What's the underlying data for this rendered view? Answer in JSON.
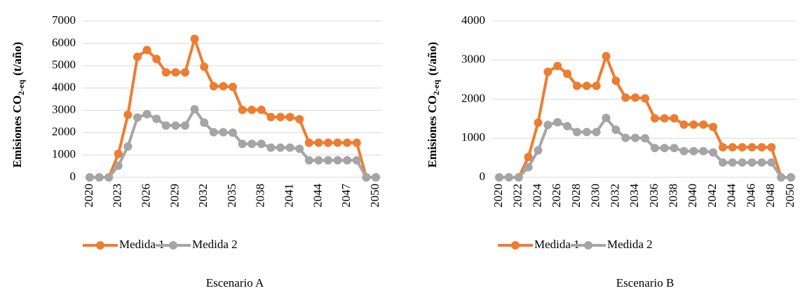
{
  "chart_data": [
    {
      "type": "line",
      "ylabel": {
        "text": "Emisiones CO",
        "sub": "2-eq",
        "suffix": "(t/año)"
      },
      "caption": "Escenario A",
      "x": [
        2020,
        2021,
        2022,
        2023,
        2024,
        2025,
        2026,
        2027,
        2028,
        2029,
        2030,
        2031,
        2032,
        2033,
        2034,
        2035,
        2036,
        2037,
        2038,
        2039,
        2040,
        2041,
        2042,
        2043,
        2044,
        2045,
        2046,
        2047,
        2048,
        2049,
        2050
      ],
      "xlim": [
        2020,
        2050
      ],
      "xticks": [
        2020,
        2023,
        2026,
        2029,
        2032,
        2035,
        2038,
        2041,
        2044,
        2047,
        2050
      ],
      "ylim": [
        0,
        7000
      ],
      "yticks": [
        0,
        1000,
        2000,
        3000,
        4000,
        5000,
        6000,
        7000
      ],
      "grid": true,
      "legend": "bottom",
      "series": [
        {
          "name": "Medida 1",
          "color": "#ed7d31",
          "values": [
            0,
            0,
            0,
            1050,
            2800,
            5400,
            5700,
            5300,
            4700,
            4700,
            4700,
            6200,
            4950,
            4080,
            4080,
            4050,
            3020,
            3020,
            3020,
            2700,
            2700,
            2700,
            2600,
            1550,
            1550,
            1550,
            1550,
            1550,
            1550,
            0,
            0
          ]
        },
        {
          "name": "Medida 2",
          "color": "#a5a5a5",
          "values": [
            0,
            0,
            0,
            520,
            1380,
            2680,
            2830,
            2620,
            2320,
            2320,
            2320,
            3050,
            2450,
            2020,
            2020,
            2000,
            1500,
            1500,
            1500,
            1330,
            1330,
            1330,
            1280,
            760,
            760,
            760,
            760,
            760,
            760,
            0,
            0
          ]
        }
      ]
    },
    {
      "type": "line",
      "ylabel": {
        "text": "Emisiones CO",
        "sub": "2-eq",
        "suffix": "(t/año)"
      },
      "caption": "Escenario B",
      "x": [
        2020,
        2021,
        2022,
        2023,
        2024,
        2025,
        2026,
        2027,
        2028,
        2029,
        2030,
        2031,
        2032,
        2033,
        2034,
        2035,
        2036,
        2037,
        2038,
        2039,
        2040,
        2041,
        2042,
        2043,
        2044,
        2045,
        2046,
        2047,
        2048,
        2049,
        2050
      ],
      "xlim": [
        2020,
        2050
      ],
      "xticks": [
        2020,
        2022,
        2024,
        2026,
        2028,
        2030,
        2032,
        2034,
        2036,
        2038,
        2040,
        2042,
        2044,
        2046,
        2048,
        2050
      ],
      "ylim": [
        0,
        4000
      ],
      "yticks": [
        0,
        1000,
        2000,
        3000,
        4000
      ],
      "grid": true,
      "legend": "bottom",
      "series": [
        {
          "name": "Medida 1",
          "color": "#ed7d31",
          "values": [
            0,
            0,
            0,
            520,
            1400,
            2700,
            2850,
            2650,
            2340,
            2340,
            2340,
            3100,
            2470,
            2040,
            2040,
            2020,
            1510,
            1510,
            1510,
            1350,
            1350,
            1350,
            1290,
            770,
            770,
            770,
            770,
            770,
            770,
            0,
            0
          ]
        },
        {
          "name": "Medida 2",
          "color": "#a5a5a5",
          "values": [
            0,
            0,
            0,
            260,
            690,
            1340,
            1410,
            1310,
            1160,
            1160,
            1160,
            1520,
            1220,
            1010,
            1010,
            1000,
            750,
            750,
            750,
            670,
            670,
            670,
            640,
            380,
            380,
            380,
            380,
            380,
            380,
            0,
            0
          ]
        }
      ]
    }
  ]
}
